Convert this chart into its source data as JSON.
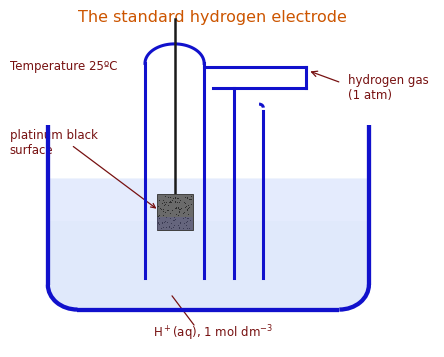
{
  "title": "The standard hydrogen electrode",
  "title_color": "#cc5500",
  "title_fontsize": 11.5,
  "bg_color": "#ffffff",
  "tube_color": "#1111cc",
  "tube_lw": 2.2,
  "solution_color_top": "#dde8ff",
  "solution_color_bot": "#99aaee",
  "label_color": "#771111",
  "label_fontsize": 8.5,
  "temp_label": "Temperature 25ºC",
  "pt_label": "platinum black\nsurface",
  "hgas_label": "hydrogen gas\n(1 atm)"
}
